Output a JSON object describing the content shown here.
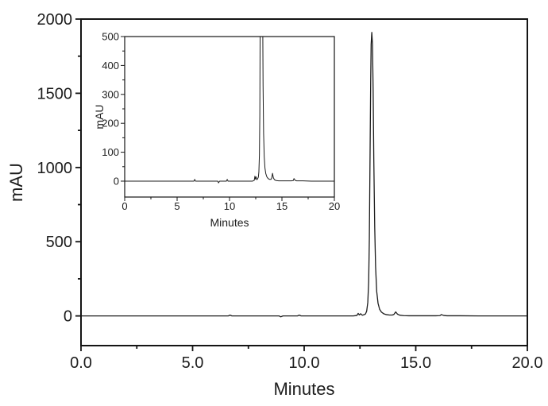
{
  "figure": {
    "background": "#ffffff",
    "line_color": "#1c1c1c",
    "frame_color": "#141414",
    "text_color": "#1c1c1c"
  },
  "chart_data": [
    {
      "id": "main",
      "type": "line",
      "title": "",
      "xlabel": "Minutes",
      "ylabel": "mAU",
      "xlim": [
        0,
        20
      ],
      "ylim": [
        -200,
        2000
      ],
      "grid": false,
      "legend": "none",
      "x_ticks": {
        "values": [
          0,
          5,
          10,
          15,
          20
        ],
        "labels": [
          "0.0",
          "5.0",
          "10.0",
          "15.0",
          "20.0"
        ],
        "minor": [
          2.5,
          7.5,
          12.5,
          17.5
        ]
      },
      "y_ticks": {
        "values": [
          0,
          500,
          1000,
          1500,
          2000
        ],
        "labels": [
          "0",
          "500",
          "1000",
          "1500",
          "2000"
        ],
        "minor": [
          250,
          750,
          1250,
          1750
        ]
      },
      "series": [
        {
          "name": "chromatogram-trace",
          "color": "#1c1c1c",
          "points_ref": "trace_points",
          "main_peak": {
            "retention_time_min": 13.0,
            "height_mau": 1910
          },
          "minor_features_min": [
            6.7,
            9.0,
            9.8,
            12.45,
            14.1,
            16.15
          ]
        }
      ]
    },
    {
      "id": "inset",
      "type": "line",
      "title": "",
      "xlabel": "Minutes",
      "ylabel": "mAU",
      "xlim": [
        0,
        20
      ],
      "ylim": [
        -55,
        500
      ],
      "grid": false,
      "legend": "none",
      "clip_note": "main peak clipped at 500 mAU",
      "x_ticks": {
        "values": [
          0,
          5,
          10,
          15,
          20
        ],
        "labels": [
          "0",
          "5",
          "10",
          "15",
          "20"
        ],
        "minor": [
          2.5,
          7.5,
          12.5,
          17.5
        ]
      },
      "y_ticks": {
        "values": [
          0,
          100,
          200,
          300,
          400,
          500
        ],
        "labels": [
          "0",
          "100",
          "200",
          "300",
          "400",
          "500"
        ],
        "minor": [
          50,
          150,
          250,
          350,
          450
        ]
      },
      "series": [
        {
          "name": "chromatogram-trace",
          "color": "#1c1c1c",
          "points_ref": "trace_points",
          "main_peak": {
            "retention_time_min": 13.0,
            "height_mau": 1910
          }
        }
      ]
    }
  ],
  "trace_points": [
    [
      0,
      0
    ],
    [
      0.8,
      0
    ],
    [
      1.6,
      0
    ],
    [
      2.4,
      0
    ],
    [
      3.2,
      0
    ],
    [
      4.0,
      0
    ],
    [
      4.8,
      0
    ],
    [
      5.6,
      0
    ],
    [
      6.3,
      0
    ],
    [
      6.6,
      0
    ],
    [
      6.68,
      6
    ],
    [
      6.76,
      0
    ],
    [
      7.5,
      0
    ],
    [
      8.3,
      0
    ],
    [
      8.88,
      0
    ],
    [
      8.95,
      -6
    ],
    [
      9.05,
      0
    ],
    [
      9.7,
      0
    ],
    [
      9.78,
      6
    ],
    [
      9.86,
      0
    ],
    [
      10.5,
      0
    ],
    [
      11.3,
      0
    ],
    [
      12.2,
      0
    ],
    [
      12.36,
      3
    ],
    [
      12.42,
      17
    ],
    [
      12.47,
      7
    ],
    [
      12.53,
      15
    ],
    [
      12.6,
      5
    ],
    [
      12.68,
      8
    ],
    [
      12.75,
      14
    ],
    [
      12.8,
      32
    ],
    [
      12.85,
      90
    ],
    [
      12.89,
      230
    ],
    [
      12.92,
      520
    ],
    [
      12.95,
      1050
    ],
    [
      12.98,
      1580
    ],
    [
      13.0,
      1830
    ],
    [
      13.03,
      1910
    ],
    [
      13.06,
      1830
    ],
    [
      13.09,
      1520
    ],
    [
      13.12,
      1050
    ],
    [
      13.16,
      600
    ],
    [
      13.2,
      330
    ],
    [
      13.25,
      165
    ],
    [
      13.31,
      85
    ],
    [
      13.38,
      45
    ],
    [
      13.46,
      26
    ],
    [
      13.56,
      15
    ],
    [
      13.68,
      9
    ],
    [
      13.82,
      6
    ],
    [
      13.95,
      6
    ],
    [
      14.02,
      10
    ],
    [
      14.1,
      27
    ],
    [
      14.18,
      12
    ],
    [
      14.28,
      5
    ],
    [
      14.45,
      2
    ],
    [
      14.7,
      1
    ],
    [
      15.2,
      1
    ],
    [
      15.9,
      1
    ],
    [
      16.08,
      2
    ],
    [
      16.15,
      9
    ],
    [
      16.25,
      3
    ],
    [
      16.4,
      1
    ],
    [
      17.0,
      1
    ],
    [
      17.8,
      0
    ],
    [
      18.6,
      0
    ],
    [
      19.3,
      0
    ],
    [
      20,
      0
    ]
  ]
}
